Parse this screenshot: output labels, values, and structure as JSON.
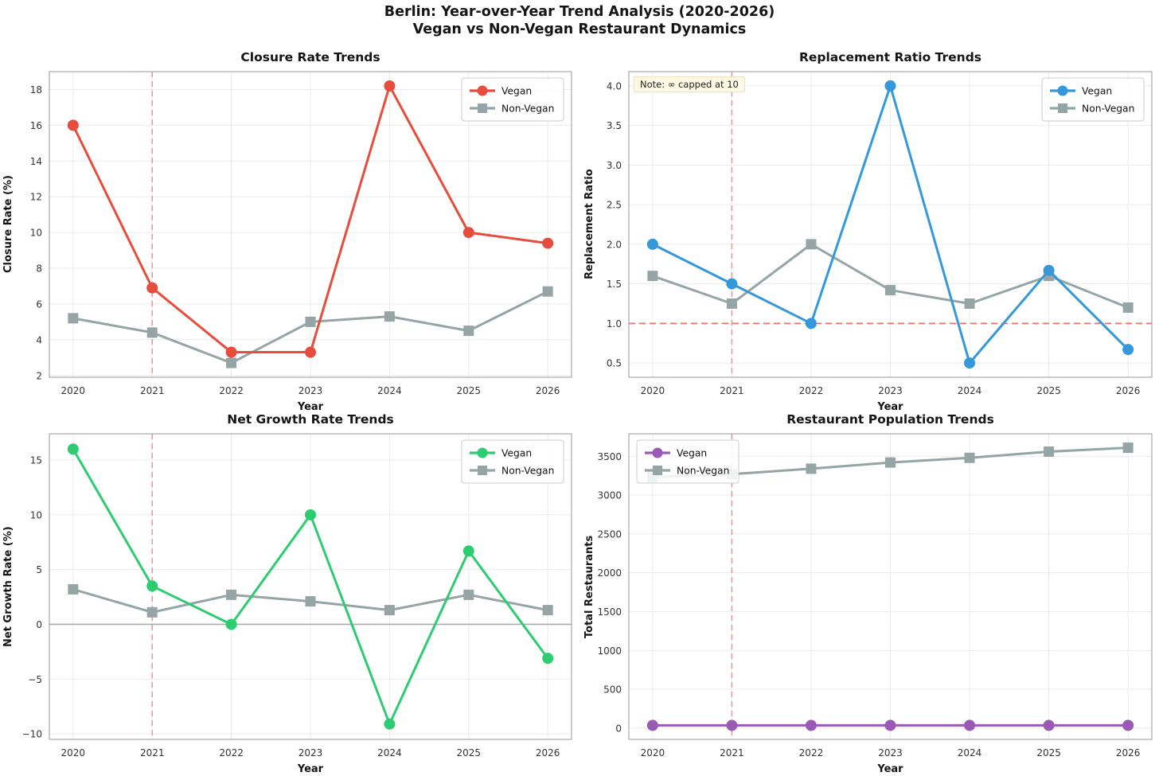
{
  "figure": {
    "title_line1": "Berlin: Year-over-Year Trend Analysis (2020-2026)",
    "title_line2": "Vegan vs Non-Vegan Restaurant Dynamics"
  },
  "colors": {
    "grid": "#ebebeb",
    "spine": "#999999",
    "vline": "#f08080",
    "hline": "#ef5a50",
    "zero_line": "#aaaaaa",
    "vegan_closure": "#e74c3c",
    "vegan_replacement": "#3498db",
    "vegan_growth": "#2ecc71",
    "vegan_population": "#9b59b6",
    "nonvegan": "#95a5a6"
  },
  "chart_data": [
    {
      "type": "line",
      "title": "Closure Rate Trends",
      "xlabel": "Year",
      "ylabel": "Closure Rate (%)",
      "x": [
        2020,
        2021,
        2022,
        2023,
        2024,
        2025,
        2026
      ],
      "xlim": [
        2019.7,
        2026.3
      ],
      "ylim": [
        1.9,
        19.0
      ],
      "yticks": [
        2,
        4,
        6,
        8,
        10,
        12,
        14,
        16,
        18
      ],
      "series": [
        {
          "name": "Vegan",
          "color": "#e74c3c",
          "marker": "circle",
          "values": [
            16.0,
            6.9,
            3.3,
            3.3,
            18.2,
            10.0,
            9.4
          ]
        },
        {
          "name": "Non-Vegan",
          "color": "#95a5a6",
          "marker": "square",
          "values": [
            5.2,
            4.4,
            2.7,
            5.0,
            5.3,
            4.5,
            6.7
          ]
        }
      ],
      "vline": 2021,
      "hline": null,
      "zero_line": false,
      "legend_pos": "top-right",
      "note": null,
      "grid": true
    },
    {
      "type": "line",
      "title": "Replacement Ratio Trends",
      "xlabel": "Year",
      "ylabel": "Replacement Ratio",
      "x": [
        2020,
        2021,
        2022,
        2023,
        2024,
        2025,
        2026
      ],
      "xlim": [
        2019.7,
        2026.3
      ],
      "ylim": [
        0.32,
        4.18
      ],
      "yticks": [
        0.5,
        1.0,
        1.5,
        2.0,
        2.5,
        3.0,
        3.5,
        4.0
      ],
      "ytick_labels": [
        "0.5",
        "1.0",
        "1.5",
        "2.0",
        "2.5",
        "3.0",
        "3.5",
        "4.0"
      ],
      "series": [
        {
          "name": "Vegan",
          "color": "#3498db",
          "marker": "circle",
          "values": [
            2.0,
            1.5,
            1.0,
            4.0,
            0.5,
            1.67,
            0.67
          ]
        },
        {
          "name": "Non-Vegan",
          "color": "#95a5a6",
          "marker": "square",
          "values": [
            1.6,
            1.25,
            2.0,
            1.42,
            1.25,
            1.6,
            1.2
          ]
        }
      ],
      "vline": 2021,
      "hline": 1.0,
      "zero_line": false,
      "legend_pos": "top-right",
      "note": "Note: ∞ capped at 10",
      "grid": true
    },
    {
      "type": "line",
      "title": "Net Growth Rate Trends",
      "xlabel": "Year",
      "ylabel": "Net Growth Rate (%)",
      "x": [
        2020,
        2021,
        2022,
        2023,
        2024,
        2025,
        2026
      ],
      "xlim": [
        2019.7,
        2026.3
      ],
      "ylim": [
        -10.5,
        17.4
      ],
      "yticks": [
        -10,
        -5,
        0,
        5,
        10,
        15
      ],
      "ytick_labels": [
        "−10",
        "−5",
        "0",
        "5",
        "10",
        "15"
      ],
      "series": [
        {
          "name": "Vegan",
          "color": "#2ecc71",
          "marker": "circle",
          "values": [
            16.0,
            3.5,
            0.0,
            10.0,
            -9.1,
            6.7,
            -3.1
          ]
        },
        {
          "name": "Non-Vegan",
          "color": "#95a5a6",
          "marker": "square",
          "values": [
            3.2,
            1.1,
            2.7,
            2.1,
            1.3,
            2.7,
            1.3
          ]
        }
      ],
      "vline": 2021,
      "hline": null,
      "zero_line": true,
      "legend_pos": "top-right",
      "note": null,
      "grid": true
    },
    {
      "type": "line",
      "title": "Restaurant Population Trends",
      "xlabel": "Year",
      "ylabel": "Total Restaurants",
      "x": [
        2020,
        2021,
        2022,
        2023,
        2024,
        2025,
        2026
      ],
      "xlim": [
        2019.7,
        2026.3
      ],
      "ylim": [
        -145,
        3790
      ],
      "yticks": [
        0,
        500,
        1000,
        1500,
        2000,
        2500,
        3000,
        3500
      ],
      "series": [
        {
          "name": "Vegan",
          "color": "#9b59b6",
          "marker": "circle",
          "values": [
            35,
            35,
            35,
            35,
            35,
            35,
            35
          ]
        },
        {
          "name": "Non-Vegan",
          "color": "#95a5a6",
          "marker": "square",
          "values": [
            3230,
            3270,
            3340,
            3420,
            3480,
            3560,
            3610
          ]
        }
      ],
      "vline": 2021,
      "hline": null,
      "zero_line": false,
      "legend_pos": "top-left",
      "note": null,
      "grid": true
    }
  ]
}
